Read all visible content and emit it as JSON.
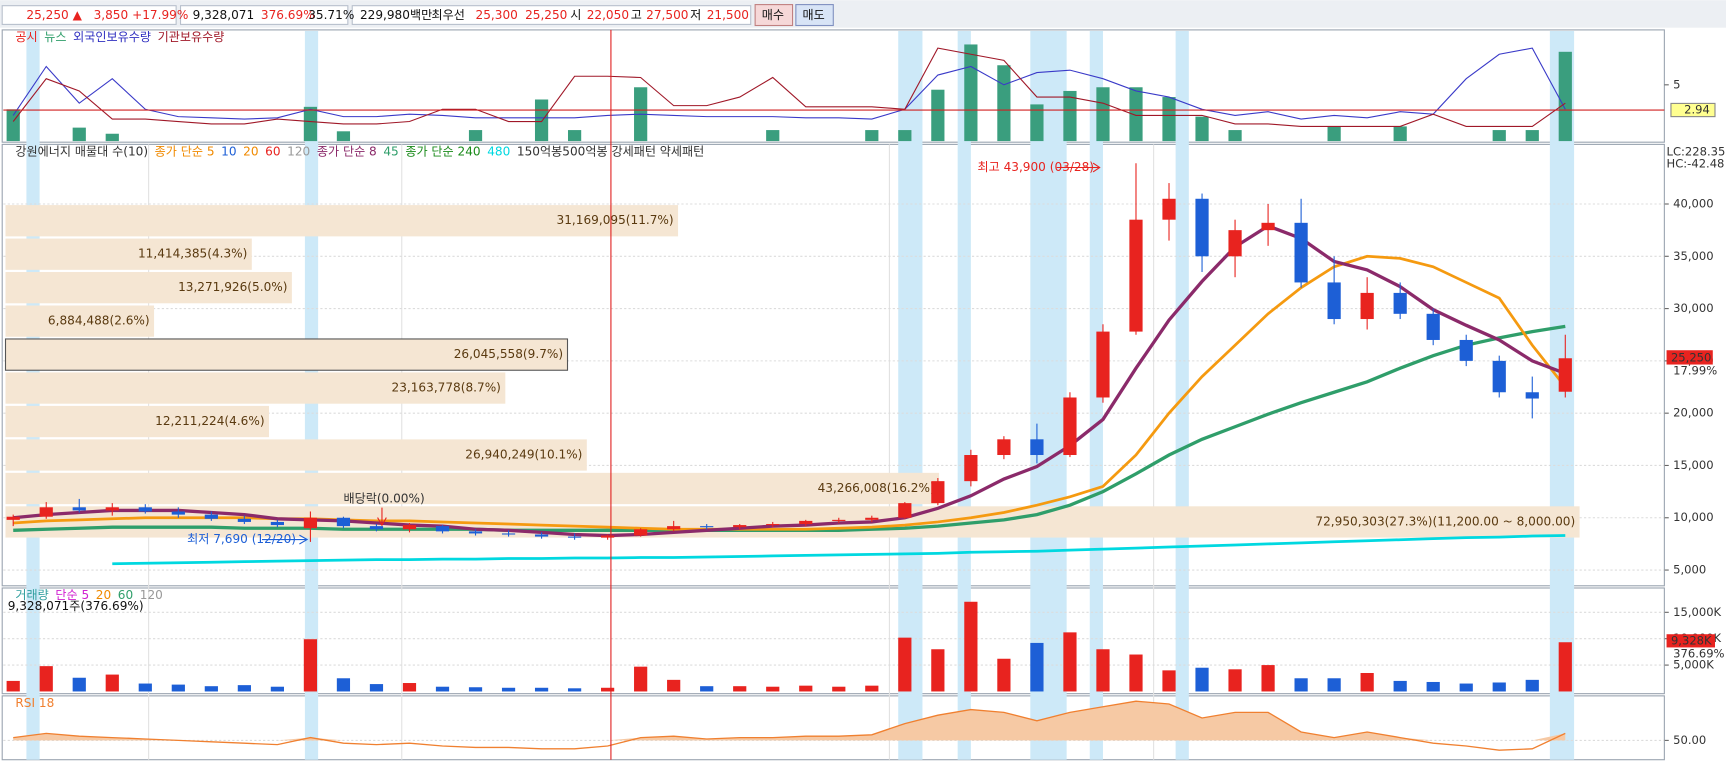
{
  "header": {
    "items": [
      "25,250 ▲",
      "3,850",
      "+17.99%",
      "9,328,071",
      "376.69%",
      "35.71%",
      "229,980백만",
      "최우선",
      "25,300",
      "25,250",
      "시",
      "22,050",
      "고",
      "27,500",
      "저",
      "21,500",
      "매수",
      "매도"
    ]
  },
  "chart_data": [
    {
      "type": "indicator",
      "legend": [
        {
          "label": "공시",
          "color": "#e8231f"
        },
        {
          "label": "뉴스",
          "color": "#2f9e6a"
        },
        {
          "label": "외국인보유수량",
          "color": "#3030c0"
        },
        {
          "label": "기관보유수량",
          "color": "#a01828"
        }
      ],
      "ylim": [
        0.4,
        9.4
      ],
      "yticks": [
        5
      ],
      "reference": {
        "value": 2.94,
        "label": "2.94"
      },
      "bars": {
        "color": "#3a9e7e",
        "values": [
          3.0,
          null,
          1.5,
          1.0,
          null,
          null,
          null,
          null,
          null,
          3.2,
          1.2,
          null,
          null,
          null,
          1.3,
          null,
          3.8,
          1.3,
          null,
          4.8,
          null,
          null,
          null,
          1.3,
          null,
          null,
          1.3,
          1.3,
          4.6,
          8.3,
          6.6,
          3.4,
          4.5,
          4.8,
          4.8,
          4.0,
          2.4,
          1.3,
          null,
          null,
          1.6,
          null,
          1.6,
          null,
          null,
          1.3,
          1.3,
          7.7
        ]
      },
      "lines": [
        {
          "color": "#3a3ac8",
          "values": [
            2.5,
            6.5,
            3.5,
            5.5,
            3.0,
            2.4,
            2.3,
            2.2,
            2.3,
            3.0,
            2.4,
            2.4,
            2.6,
            2.5,
            2.3,
            2.3,
            2.3,
            2.3,
            2.5,
            2.6,
            2.5,
            2.4,
            2.4,
            2.4,
            2.3,
            2.3,
            2.2,
            3.0,
            5.8,
            6.5,
            5.0,
            6.0,
            6.2,
            5.5,
            4.5,
            4.0,
            3.0,
            2.5,
            2.8,
            2.2,
            2.5,
            2.3,
            2.8,
            2.6,
            5.5,
            7.5,
            8.0,
            3.0
          ]
        },
        {
          "color": "#a01828",
          "values": [
            2.0,
            5.5,
            4.5,
            2.2,
            2.2,
            2.0,
            1.8,
            1.8,
            2.2,
            2.0,
            1.8,
            1.8,
            2.0,
            3.0,
            3.0,
            2.0,
            2.0,
            5.7,
            5.7,
            5.6,
            3.3,
            3.3,
            4.0,
            5.6,
            3.2,
            3.2,
            3.2,
            3.0,
            8.0,
            7.5,
            7.0,
            4.0,
            4.0,
            3.5,
            2.5,
            2.5,
            2.5,
            1.8,
            1.8,
            1.6,
            1.6,
            1.6,
            1.6,
            2.6,
            1.6,
            1.6,
            1.6,
            3.5
          ]
        }
      ]
    },
    {
      "type": "candlestick",
      "legend": [
        {
          "label": "강원에너지 매물대 수(10)",
          "color": "#333333"
        },
        {
          "label": "종가 단순 5",
          "color": "#f08a00"
        },
        {
          "label": "10",
          "color": "#1d5fd6"
        },
        {
          "label": "20",
          "color": "#f08a00"
        },
        {
          "label": "60",
          "color": "#e8231f"
        },
        {
          "label": "120",
          "color": "#999999"
        },
        {
          "label": "종가 단순 8",
          "color": "#8b2a6a"
        },
        {
          "label": "45",
          "color": "#2f9e6a"
        },
        {
          "label": "종가 단순 240",
          "color": "#1a8a1a"
        },
        {
          "label": "480",
          "color": "#00d8e0"
        },
        {
          "label": "150억봉500억봉 강세패턴  약세패턴",
          "color": "#333333"
        }
      ],
      "ylim": [
        3600,
        45700
      ],
      "yticks": [
        {
          "value": 5000,
          "label": "5,000"
        },
        {
          "value": 10000,
          "label": "10,000"
        },
        {
          "value": 15000,
          "label": "15,000"
        },
        {
          "value": 20000,
          "label": "20,000"
        },
        {
          "value": 25000,
          "label": "25,000"
        },
        {
          "value": 30000,
          "label": "30,000"
        },
        {
          "value": 35000,
          "label": "35,000"
        },
        {
          "value": 40000,
          "label": "40,000"
        }
      ],
      "grid": true,
      "up_color": "#e8231f",
      "down_color": "#1d5fd6",
      "ohlc": [
        [
          9800,
          10300,
          9200,
          10100
        ],
        [
          10100,
          11500,
          9900,
          11000
        ],
        [
          11000,
          11800,
          10500,
          10700
        ],
        [
          10700,
          11400,
          10200,
          11000
        ],
        [
          11000,
          11300,
          10400,
          10600
        ],
        [
          10600,
          11000,
          10000,
          10300
        ],
        [
          10300,
          10600,
          9700,
          9900
        ],
        [
          9900,
          10200,
          9400,
          9600
        ],
        [
          9600,
          9800,
          9100,
          9300
        ],
        [
          9000,
          10600,
          7690,
          10000
        ],
        [
          10000,
          10100,
          9000,
          9200
        ],
        [
          9200,
          9400,
          8700,
          8900
        ],
        [
          8900,
          9500,
          8600,
          9300
        ],
        [
          9200,
          9300,
          8500,
          8700
        ],
        [
          8700,
          8900,
          8300,
          8500
        ],
        [
          8500,
          8800,
          8200,
          8400
        ],
        [
          8400,
          8600,
          8000,
          8200
        ],
        [
          8200,
          8500,
          7900,
          8100
        ],
        [
          8100,
          8400,
          7900,
          8300
        ],
        [
          8300,
          9000,
          8200,
          8900
        ],
        [
          8900,
          9700,
          8700,
          9200
        ],
        [
          9200,
          9400,
          8900,
          9100
        ],
        [
          9100,
          9400,
          8900,
          9300
        ],
        [
          9300,
          9600,
          9100,
          9400
        ],
        [
          9400,
          9800,
          9200,
          9700
        ],
        [
          9700,
          10000,
          9500,
          9800
        ],
        [
          9800,
          10200,
          9600,
          10000
        ],
        [
          10000,
          11500,
          9900,
          11400
        ],
        [
          11400,
          13800,
          11200,
          13500
        ],
        [
          13500,
          16500,
          13000,
          16000
        ],
        [
          16000,
          17800,
          15600,
          17500
        ],
        [
          17500,
          19000,
          15200,
          16000
        ],
        [
          16000,
          22000,
          15800,
          21500
        ],
        [
          21500,
          28500,
          21000,
          27800
        ],
        [
          27800,
          43900,
          27500,
          38500
        ],
        [
          38500,
          42000,
          36500,
          40500
        ],
        [
          40500,
          41000,
          33500,
          35000
        ],
        [
          35000,
          38500,
          33000,
          37500
        ],
        [
          37500,
          40000,
          36000,
          38200
        ],
        [
          38200,
          40500,
          32000,
          32500
        ],
        [
          32500,
          35000,
          28500,
          29000
        ],
        [
          29000,
          33000,
          28000,
          31500
        ],
        [
          31500,
          32500,
          29000,
          29500
        ],
        [
          29500,
          30000,
          26500,
          27000
        ],
        [
          27000,
          27500,
          24500,
          25000
        ],
        [
          25000,
          25500,
          21500,
          22000
        ],
        [
          22000,
          23500,
          19500,
          21400
        ],
        [
          22050,
          27500,
          21500,
          25250
        ]
      ],
      "lines": [
        {
          "color": "#00d8e0",
          "width": 2.5,
          "values": [
            null,
            null,
            null,
            5600,
            5650,
            5700,
            5750,
            5800,
            5850,
            5900,
            5950,
            6000,
            6000,
            6050,
            6050,
            6100,
            6100,
            6150,
            6150,
            6200,
            6200,
            6250,
            6300,
            6350,
            6400,
            6450,
            6500,
            6550,
            6600,
            6700,
            6750,
            6800,
            6900,
            7000,
            7100,
            7200,
            7300,
            7400,
            7500,
            7600,
            7700,
            7800,
            7900,
            8000,
            8100,
            8150,
            8250,
            8300
          ]
        },
        {
          "color": "#2f9e6a",
          "width": 3,
          "values": [
            8800,
            8900,
            9000,
            9100,
            9100,
            9100,
            9100,
            9000,
            9000,
            9000,
            8900,
            8900,
            8900,
            8900,
            8900,
            8800,
            8800,
            8800,
            8800,
            8800,
            8800,
            8800,
            8800,
            8800,
            8800,
            8800,
            8900,
            9000,
            9200,
            9500,
            9800,
            10300,
            11200,
            12500,
            14200,
            16000,
            17500,
            18700,
            19900,
            21000,
            22000,
            23000,
            24300,
            25500,
            26500,
            27200,
            27800,
            28300
          ]
        },
        {
          "color": "#f59a10",
          "width": 2.5,
          "values": [
            9500,
            9700,
            9800,
            9900,
            10000,
            10000,
            10000,
            10000,
            9900,
            9900,
            9800,
            9700,
            9700,
            9600,
            9500,
            9400,
            9300,
            9200,
            9100,
            9000,
            8900,
            8900,
            8900,
            8900,
            8900,
            9000,
            9100,
            9300,
            9600,
            10000,
            10500,
            11200,
            12000,
            13000,
            16000,
            20000,
            23500,
            26500,
            29500,
            32000,
            34000,
            35000,
            34800,
            34000,
            32500,
            31000,
            26500,
            22500
          ]
        },
        {
          "color": "#8b2a6a",
          "width": 3,
          "values": [
            10000,
            10300,
            10500,
            10700,
            10700,
            10700,
            10500,
            10300,
            9900,
            9800,
            9700,
            9500,
            9300,
            9200,
            8900,
            8800,
            8600,
            8400,
            8300,
            8400,
            8600,
            8800,
            9000,
            9200,
            9300,
            9500,
            9600,
            10000,
            10900,
            12100,
            13700,
            14900,
            16900,
            19400,
            24300,
            28900,
            32600,
            35900,
            37900,
            36700,
            34500,
            33700,
            32100,
            29900,
            28400,
            27000,
            25000,
            23800
          ]
        }
      ],
      "profile": {
        "color": "#f5e6d3",
        "values": [
          31169095,
          11414385,
          13271926,
          6884488,
          26045558,
          23163778,
          12211224,
          26940249,
          43266008,
          72950303
        ],
        "value_labels": [
          "31,169,095(11.7%)",
          "11,414,385(4.3%)",
          "13,271,926(5.0%)",
          "6,884,488(2.6%)",
          "26,045,558(9.7%)",
          "23,163,778(8.7%)",
          "12,211,224(4.6%)",
          "26,940,249(10.1%)",
          "43,266,008(16.2%)",
          "72,950,303(27.3%)(11,200.00 ~ 8,000.00)"
        ],
        "bands": [
          [
            36800,
            40000
          ],
          [
            33600,
            36800
          ],
          [
            30400,
            33600
          ],
          [
            27200,
            30400
          ],
          [
            24000,
            27200
          ],
          [
            20800,
            24000
          ],
          [
            17600,
            20800
          ],
          [
            14400,
            17600
          ],
          [
            11200,
            14400
          ],
          [
            8000,
            11200
          ]
        ]
      },
      "annotations": {
        "high": "최고 43,900 (03/28)",
        "low": "최저 7,690 (12/20)",
        "dividend": "배당락(0.00%)"
      },
      "right_labels": {
        "lc": "LC:228.35",
        "hc": "HC:-42.48",
        "price": "25,250",
        "change": "17.99%"
      }
    },
    {
      "type": "volume",
      "legend": [
        {
          "label": "거래량",
          "color": "#2f9e9e"
        },
        {
          "label": "단순 5",
          "color": "#d020d0"
        },
        {
          "label": "20",
          "color": "#f08a00"
        },
        {
          "label": "60",
          "color": "#2f9e6a"
        },
        {
          "label": "120",
          "color": "#999999"
        }
      ],
      "subtitle": "9,328,071주(376.69%)",
      "ylim": [
        0,
        19400
      ],
      "yticks": [
        {
          "value": 5000,
          "label": "5,000K"
        },
        {
          "value": 10000,
          "label": "10,000K"
        },
        {
          "value": 15000,
          "label": "15,000K"
        }
      ],
      "values": [
        2000,
        4800,
        2600,
        3200,
        1500,
        1300,
        1000,
        1200,
        900,
        9900,
        2500,
        1400,
        1600,
        900,
        800,
        700,
        700,
        600,
        700,
        4700,
        2200,
        1000,
        1000,
        900,
        1100,
        900,
        1100,
        10200,
        8000,
        17000,
        6200,
        9200,
        11200,
        8000,
        7000,
        4000,
        4500,
        4200,
        5000,
        2500,
        2500,
        3500,
        2000,
        1800,
        1500,
        1700,
        2200,
        9328
      ],
      "right_labels": {
        "volume": "9,328K",
        "ratio": "376.69%"
      }
    },
    {
      "type": "rsi",
      "legend": [
        {
          "label": "RSI 18",
          "color": "#f08030"
        }
      ],
      "ylim": [
        37,
        81
      ],
      "yticks": [
        {
          "value": 50,
          "label": "50.00"
        }
      ],
      "color": "#f08030",
      "values": [
        52,
        55,
        53,
        52,
        51,
        50,
        49,
        48,
        47,
        52,
        48,
        47,
        48,
        46,
        45,
        45,
        44,
        44,
        46,
        52,
        53,
        51,
        52,
        52,
        53,
        53,
        54,
        62,
        68,
        72,
        70,
        64,
        70,
        74,
        78,
        76,
        66,
        70,
        70,
        56,
        52,
        56,
        52,
        48,
        46,
        43,
        44,
        55
      ]
    }
  ]
}
